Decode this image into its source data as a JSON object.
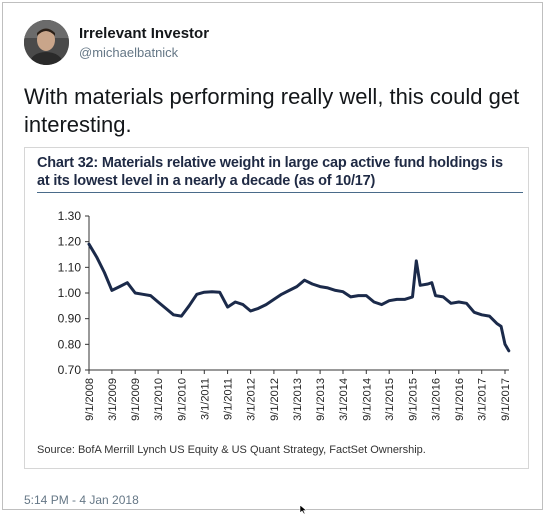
{
  "tweet": {
    "display_name": "Irrelevant Investor",
    "handle": "@michaelbatnick",
    "text": "With materials performing really well, this could get interesting.",
    "timestamp": "5:14 PM - 4 Jan 2018",
    "avatar_icon": "person-photo-icon"
  },
  "chart_data": {
    "type": "line",
    "title": "Chart 32: Materials relative weight in large cap active fund holdings is at its lowest level in a nearly a decade (as of 10/17)",
    "source": "Source: BofA Merrill Lynch US Equity & US Quant Strategy, FactSet Ownership.",
    "xlabel": "",
    "ylabel": "",
    "ylim": [
      0.7,
      1.3
    ],
    "yticks": [
      "1.30",
      "1.20",
      "1.10",
      "1.00",
      "0.90",
      "0.80",
      "0.70"
    ],
    "xticks": [
      "9/1/2008",
      "3/1/2009",
      "9/1/2009",
      "3/1/2010",
      "9/1/2010",
      "3/1/2011",
      "9/1/2011",
      "3/1/2012",
      "9/1/2012",
      "3/1/2013",
      "9/1/2013",
      "3/1/2014",
      "9/1/2014",
      "3/1/2015",
      "9/1/2015",
      "3/1/2016",
      "9/1/2016",
      "3/1/2017",
      "9/1/2017"
    ],
    "grid": false,
    "line_color": "#1b2a4a",
    "series": [
      {
        "x": [
          "2008-09",
          "2008-11",
          "2009-01",
          "2009-03",
          "2009-05",
          "2009-07",
          "2009-09",
          "2009-11",
          "2010-01",
          "2010-03",
          "2010-05",
          "2010-07",
          "2010-09",
          "2010-11",
          "2011-01",
          "2011-03",
          "2011-05",
          "2011-07",
          "2011-09",
          "2011-11",
          "2012-01",
          "2012-03",
          "2012-05",
          "2012-07",
          "2012-09",
          "2012-11",
          "2013-01",
          "2013-03",
          "2013-05",
          "2013-07",
          "2013-09",
          "2013-11",
          "2014-01",
          "2014-03",
          "2014-05",
          "2014-07",
          "2014-09",
          "2014-11",
          "2015-01",
          "2015-03",
          "2015-05",
          "2015-07",
          "2015-09",
          "2015-10",
          "2015-11",
          "2016-01",
          "2016-02",
          "2016-03",
          "2016-05",
          "2016-07",
          "2016-09",
          "2016-11",
          "2017-01",
          "2017-03",
          "2017-05",
          "2017-07",
          "2017-08",
          "2017-09",
          "2017-10"
        ],
        "y": [
          1.19,
          1.14,
          1.08,
          1.01,
          1.025,
          1.04,
          1.0,
          0.995,
          0.99,
          0.965,
          0.94,
          0.915,
          0.91,
          0.95,
          0.995,
          1.003,
          1.005,
          1.003,
          0.945,
          0.965,
          0.955,
          0.93,
          0.94,
          0.955,
          0.975,
          0.995,
          1.01,
          1.025,
          1.05,
          1.035,
          1.025,
          1.02,
          1.01,
          1.005,
          0.985,
          0.99,
          0.99,
          0.965,
          0.955,
          0.97,
          0.975,
          0.975,
          0.985,
          1.125,
          1.03,
          1.035,
          1.04,
          0.99,
          0.985,
          0.96,
          0.965,
          0.96,
          0.925,
          0.915,
          0.91,
          0.88,
          0.87,
          0.8,
          0.775
        ]
      }
    ]
  }
}
